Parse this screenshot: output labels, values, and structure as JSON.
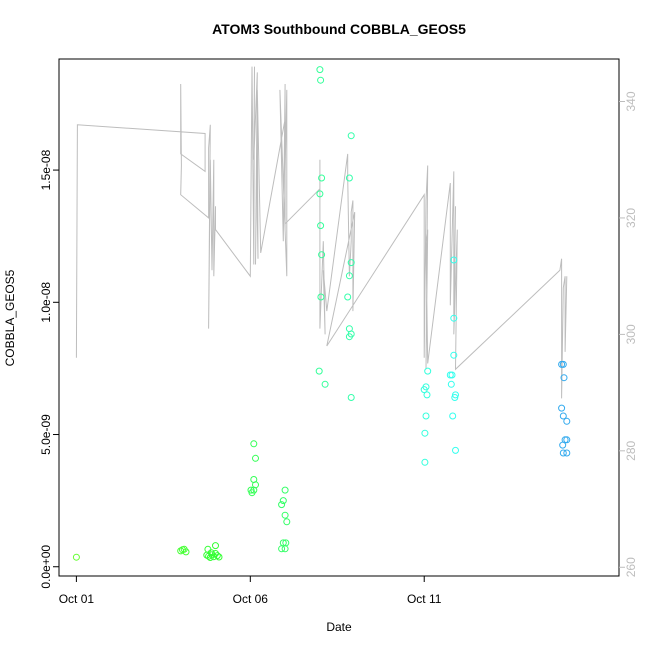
{
  "chart_data": {
    "type": "scatter",
    "title": "ATOM3 Southbound COBBLA_GEOS5",
    "xlabel": "Date",
    "ylabel": "COBBLA_GEOS5",
    "x_ticks": [
      {
        "day": 1,
        "label": "Oct 01"
      },
      {
        "day": 6,
        "label": "Oct 06"
      },
      {
        "day": 11,
        "label": "Oct 11"
      }
    ],
    "x_range_days": [
      0.5,
      16.6
    ],
    "ylim": [
      -3.5e-10,
      1.92e-08
    ],
    "y_ticks": [
      {
        "value": 0,
        "label": "0.0e+00"
      },
      {
        "value": 5e-09,
        "label": "5.0e-09"
      },
      {
        "value": 1e-08,
        "label": "1.0e-08"
      },
      {
        "value": 1.5e-08,
        "label": "1.5e-08"
      }
    ],
    "y2lim": [
      258.5,
      347.3
    ],
    "y2_ticks": [
      260,
      280,
      300,
      320,
      340
    ],
    "y2_color": "#bdbdbd",
    "grid": false,
    "line_color": "#bdbdbd",
    "series": [
      {
        "kind": "points",
        "x_unit": "days (Oct 01 = 1)",
        "points": [
          [
            1.0,
            3.6e-10,
            "#66ff33"
          ],
          [
            4.0,
            6e-10,
            "#44ff33"
          ],
          [
            4.05,
            6.4e-10,
            "#44ff33"
          ],
          [
            4.1,
            6.6e-10,
            "#44ff33"
          ],
          [
            4.15,
            5.6e-10,
            "#44ff33"
          ],
          [
            4.75,
            4.4e-10,
            "#33ff33"
          ],
          [
            4.8,
            4e-10,
            "#33ff33"
          ],
          [
            4.85,
            3.5e-10,
            "#33ff33"
          ],
          [
            4.9,
            4.5e-10,
            "#33ff33"
          ],
          [
            4.95,
            3.8e-10,
            "#33ff33"
          ],
          [
            5.0,
            5e-10,
            "#33ff33"
          ],
          [
            5.0,
            8e-10,
            "#33ff33"
          ],
          [
            5.05,
            4.2e-10,
            "#33ff33"
          ],
          [
            5.1,
            3.7e-10,
            "#33ff33"
          ],
          [
            4.78,
            6.6e-10,
            "#33ff33"
          ],
          [
            4.88,
            5.3e-10,
            "#33ff33"
          ],
          [
            6.05,
            2.8e-09,
            "#33ff55"
          ],
          [
            6.1,
            2.9e-09,
            "#33ff55"
          ],
          [
            6.1,
            4.65e-09,
            "#33ff55"
          ],
          [
            6.15,
            4.1e-09,
            "#33ff55"
          ],
          [
            6.1,
            3.3e-09,
            "#33ff55"
          ],
          [
            6.15,
            3.1e-09,
            "#33ff55"
          ],
          [
            6.02,
            2.9e-09,
            "#33ff55"
          ],
          [
            6.9,
            2.35e-09,
            "#33ff66"
          ],
          [
            6.95,
            2.5e-09,
            "#33ff66"
          ],
          [
            7.0,
            1.95e-09,
            "#33ff66"
          ],
          [
            7.0,
            2.9e-09,
            "#33ff66"
          ],
          [
            7.05,
            1.7e-09,
            "#33ff66"
          ],
          [
            6.9,
            6.8e-10,
            "#33ff66"
          ],
          [
            7.0,
            6.8e-10,
            "#33ff66"
          ],
          [
            6.95,
            9e-10,
            "#33ff66"
          ],
          [
            7.02,
            9e-10,
            "#33ff66"
          ],
          [
            8.0,
            1.88e-08,
            "#33ff99"
          ],
          [
            8.02,
            1.84e-08,
            "#33ff99"
          ],
          [
            8.05,
            1.47e-08,
            "#33ff99"
          ],
          [
            8.0,
            1.41e-08,
            "#33ff99"
          ],
          [
            8.02,
            1.29e-08,
            "#33ff99"
          ],
          [
            8.05,
            1.18e-08,
            "#33ff99"
          ],
          [
            8.03,
            1.02e-08,
            "#33ff99"
          ],
          [
            7.98,
            7.4e-09,
            "#33ff99"
          ],
          [
            8.15,
            6.9e-09,
            "#33ff99"
          ],
          [
            8.9,
            1.63e-08,
            "#33ffaa"
          ],
          [
            8.85,
            1.47e-08,
            "#33ffaa"
          ],
          [
            8.9,
            1.15e-08,
            "#33ffaa"
          ],
          [
            8.85,
            1.1e-08,
            "#33ffaa"
          ],
          [
            8.8,
            1.02e-08,
            "#33ffaa"
          ],
          [
            8.85,
            9e-09,
            "#33ffaa"
          ],
          [
            8.9,
            8.8e-09,
            "#33ffaa"
          ],
          [
            8.85,
            8.7e-09,
            "#33ffaa"
          ],
          [
            8.9,
            6.4e-09,
            "#33ffaa"
          ],
          [
            11.0,
            6.7e-09,
            "#33ffdd"
          ],
          [
            11.05,
            6.8e-09,
            "#33ffdd"
          ],
          [
            11.1,
            7.4e-09,
            "#33ffdd"
          ],
          [
            11.08,
            6.5e-09,
            "#33ffdd"
          ],
          [
            11.05,
            5.7e-09,
            "#33ffdd"
          ],
          [
            11.02,
            5.05e-09,
            "#33ffdd"
          ],
          [
            11.02,
            3.95e-09,
            "#33ffdd"
          ],
          [
            11.75,
            7.25e-09,
            "#33ffee"
          ],
          [
            11.8,
            7.25e-09,
            "#33ffee"
          ],
          [
            11.85,
            1.16e-08,
            "#33ffee"
          ],
          [
            11.85,
            9.4e-09,
            "#33ffee"
          ],
          [
            11.85,
            8e-09,
            "#33ffee"
          ],
          [
            11.78,
            6.9e-09,
            "#33ffee"
          ],
          [
            11.9,
            6.5e-09,
            "#33ffee"
          ],
          [
            11.88,
            6.4e-09,
            "#33ffee"
          ],
          [
            11.82,
            5.7e-09,
            "#33ffee"
          ],
          [
            11.9,
            4.4e-09,
            "#33ffee"
          ],
          [
            14.95,
            7.65e-09,
            "#33aaee"
          ],
          [
            15.0,
            7.65e-09,
            "#33aaee"
          ],
          [
            15.02,
            7.15e-09,
            "#33aaee"
          ],
          [
            14.95,
            6e-09,
            "#33aaee"
          ],
          [
            15.0,
            5.7e-09,
            "#33aaee"
          ],
          [
            15.1,
            5.5e-09,
            "#33aaee"
          ],
          [
            15.05,
            4.8e-09,
            "#33aaee"
          ],
          [
            15.1,
            4.8e-09,
            "#33aaee"
          ],
          [
            14.98,
            4.6e-09,
            "#33aaee"
          ],
          [
            15.0,
            4.3e-09,
            "#33aaee"
          ],
          [
            15.1,
            4.3e-09,
            "#33aaee"
          ]
        ]
      },
      {
        "kind": "line",
        "axis": "right",
        "x_unit": "days (Oct 01 = 1)",
        "points": [
          [
            1.0,
            296
          ],
          [
            1.03,
            336
          ],
          [
            4.7,
            334.5
          ],
          [
            4.7,
            328
          ],
          [
            4.0,
            331
          ],
          [
            4.0,
            343
          ],
          [
            4.02,
            329
          ],
          [
            4.0,
            324
          ],
          [
            4.8,
            320
          ],
          [
            4.8,
            332
          ],
          [
            4.85,
            336
          ],
          [
            4.8,
            301
          ],
          [
            4.85,
            330
          ],
          [
            4.9,
            311
          ],
          [
            4.95,
            330
          ],
          [
            4.95,
            310
          ],
          [
            5.0,
            322
          ],
          [
            5.0,
            318
          ],
          [
            6.0,
            310
          ],
          [
            6.05,
            346
          ],
          [
            6.1,
            312
          ],
          [
            6.12,
            346
          ],
          [
            6.1,
            330
          ],
          [
            6.2,
            345
          ],
          [
            6.15,
            312
          ],
          [
            6.2,
            338
          ],
          [
            6.22,
            313
          ],
          [
            6.2,
            320
          ],
          [
            6.2,
            342
          ],
          [
            6.3,
            314
          ],
          [
            7.0,
            337
          ],
          [
            7.0,
            318
          ],
          [
            7.0,
            328
          ],
          [
            7.05,
            342
          ],
          [
            7.05,
            310
          ],
          [
            6.85,
            342
          ],
          [
            6.95,
            316
          ],
          [
            7.0,
            343
          ],
          [
            7.0,
            319
          ],
          [
            8.0,
            325
          ],
          [
            8.0,
            330
          ],
          [
            8.0,
            324
          ],
          [
            8.0,
            301
          ],
          [
            8.1,
            316
          ],
          [
            8.15,
            300
          ],
          [
            8.1,
            311
          ],
          [
            8.2,
            304
          ],
          [
            8.8,
            331
          ],
          [
            8.8,
            327
          ],
          [
            8.85,
            310
          ],
          [
            8.9,
            316
          ],
          [
            8.9,
            321
          ],
          [
            8.95,
            323
          ],
          [
            8.95,
            304
          ],
          [
            9.0,
            321
          ],
          [
            8.2,
            298
          ],
          [
            11.0,
            324
          ],
          [
            11.0,
            296
          ],
          [
            11.05,
            323
          ],
          [
            11.1,
            329
          ],
          [
            11.05,
            294
          ],
          [
            11.1,
            318
          ],
          [
            11.05,
            316
          ],
          [
            11.1,
            295
          ],
          [
            11.75,
            326
          ],
          [
            11.75,
            305
          ],
          [
            11.85,
            328
          ],
          [
            11.85,
            303
          ],
          [
            11.9,
            322
          ],
          [
            11.85,
            300
          ],
          [
            11.95,
            318
          ],
          [
            11.9,
            294
          ],
          [
            14.9,
            311
          ],
          [
            14.95,
            313
          ],
          [
            14.95,
            289
          ],
          [
            15.0,
            308
          ],
          [
            15.05,
            310
          ],
          [
            15.05,
            297
          ],
          [
            15.1,
            310
          ]
        ]
      }
    ]
  }
}
